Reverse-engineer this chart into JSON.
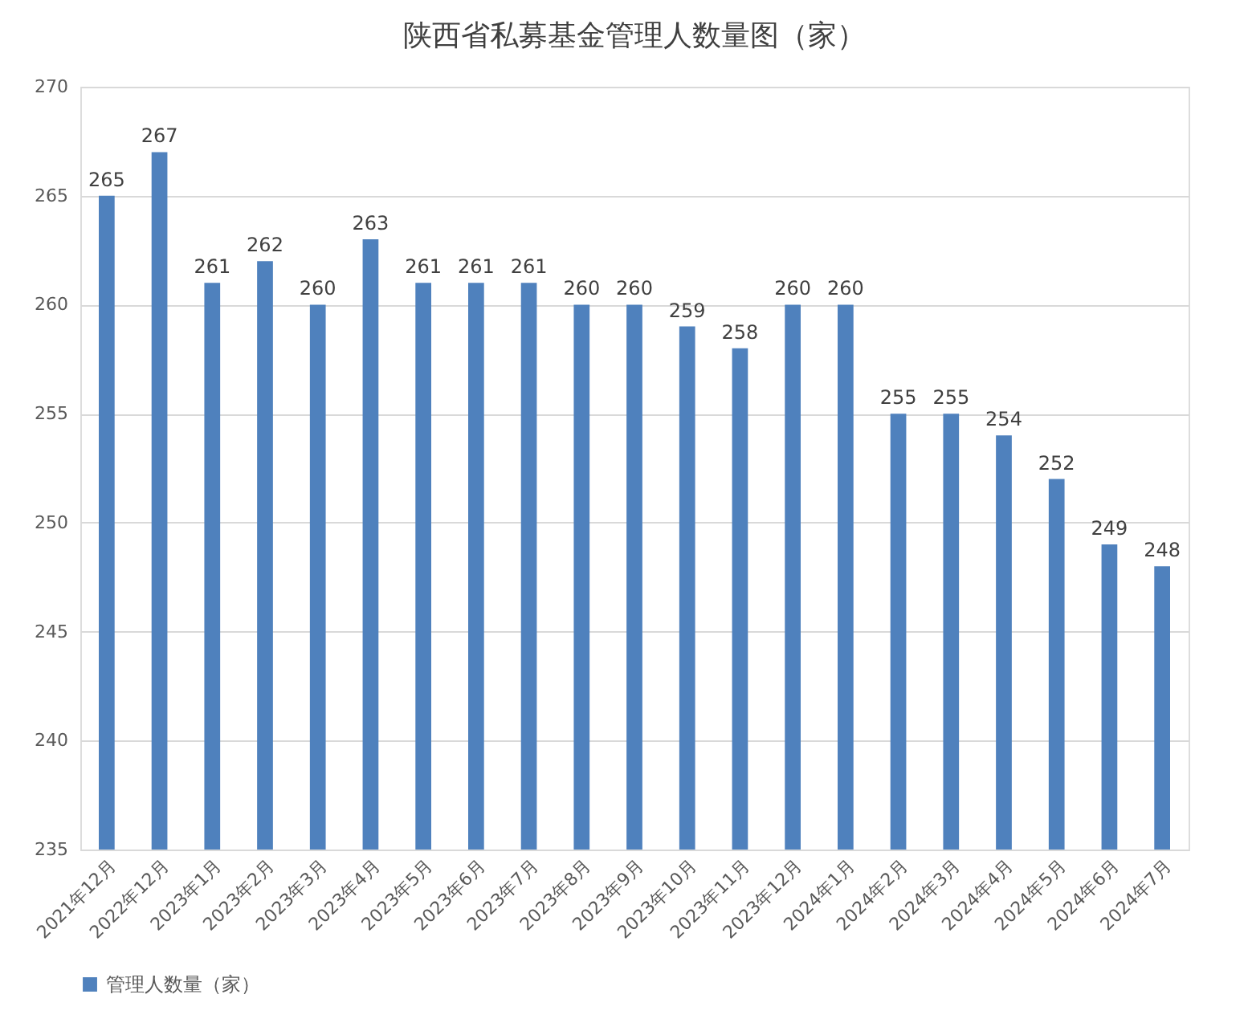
{
  "chart_data": {
    "type": "bar",
    "title": "陕西省私募基金管理人数量图（家）",
    "categories": [
      "2021年12月",
      "2022年12月",
      "2023年1月",
      "2023年2月",
      "2023年3月",
      "2023年4月",
      "2023年5月",
      "2023年6月",
      "2023年7月",
      "2023年8月",
      "2023年9月",
      "2023年10月",
      "2023年11月",
      "2023年12月",
      "2024年1月",
      "2024年2月",
      "2024年3月",
      "2024年4月",
      "2024年5月",
      "2024年6月",
      "2024年7月"
    ],
    "series": [
      {
        "name": "管理人数量（家）",
        "color": "#4f81bd",
        "values": [
          265,
          267,
          261,
          262,
          260,
          263,
          261,
          261,
          261,
          260,
          260,
          259,
          258,
          260,
          260,
          255,
          255,
          254,
          252,
          249,
          248
        ]
      }
    ],
    "ylim": [
      235,
      270
    ],
    "yticks": [
      235,
      240,
      245,
      250,
      255,
      260,
      265,
      270
    ],
    "grid": "y",
    "data_labels": true,
    "legend": "bottom"
  }
}
